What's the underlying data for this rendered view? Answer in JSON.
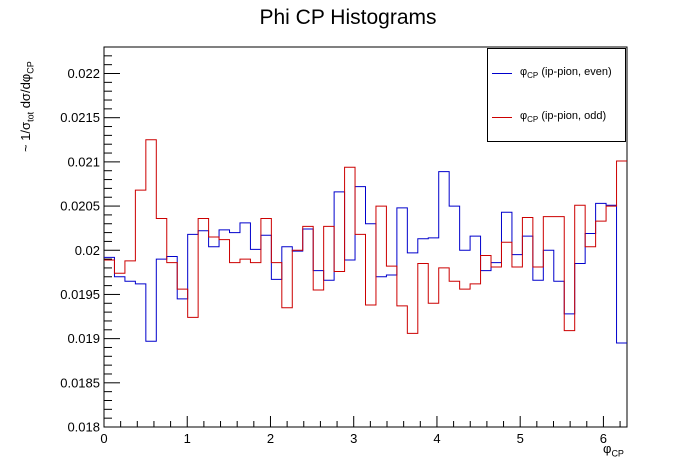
{
  "chart_data": {
    "type": "histogram",
    "title": "Phi CP Histograms",
    "xlabel_symbol": "φ",
    "xlabel_sub": "CP",
    "ylabel_parts": [
      "~ 1/σ",
      "tot",
      " dσ/dφ",
      "CP"
    ],
    "xlim": [
      0,
      6.2832
    ],
    "ylim": [
      0.018,
      0.0223
    ],
    "xticks": [
      0,
      1,
      2,
      3,
      4,
      5,
      6
    ],
    "yticks": [
      0.018,
      0.0185,
      0.019,
      0.0195,
      0.02,
      0.0205,
      0.021,
      0.0215,
      0.022
    ],
    "ytick_labels": [
      "0.018",
      "0.0185",
      "0.019",
      "0.0195",
      "0.02",
      "0.0205",
      "0.021",
      "0.0215",
      "0.022"
    ],
    "nbins": 50,
    "series": [
      {
        "name": "φCP (ip-pion, even)",
        "label_main": "φ",
        "label_sub": "CP",
        "label_rest": " (ip-pion, even)",
        "color": "#0000cc",
        "values": [
          0.01992,
          0.0197,
          0.01965,
          0.01962,
          0.01897,
          0.0199,
          0.01993,
          0.01945,
          0.02018,
          0.02022,
          0.02004,
          0.02023,
          0.0202,
          0.02031,
          0.02001,
          0.02017,
          0.01967,
          0.02004,
          0.01999,
          0.02024,
          0.01977,
          0.01966,
          0.02066,
          0.01989,
          0.02072,
          0.0203,
          0.0197,
          0.01972,
          0.02048,
          0.01997,
          0.02013,
          0.02014,
          0.02089,
          0.0205,
          0.02,
          0.02016,
          0.01977,
          0.01986,
          0.02043,
          0.01995,
          0.02016,
          0.01966,
          0.02,
          0.01965,
          0.01928,
          0.01985,
          0.02019,
          0.02053,
          0.02051,
          0.01895
        ]
      },
      {
        "name": "φCP (ip-pion, odd)",
        "label_main": "φ",
        "label_sub": "CP",
        "label_rest": " (ip-pion, odd)",
        "color": "#cc0000",
        "values": [
          0.01989,
          0.01974,
          0.01988,
          0.02068,
          0.02125,
          0.02036,
          0.01986,
          0.01956,
          0.01924,
          0.02036,
          0.02015,
          0.02012,
          0.01986,
          0.0199,
          0.01986,
          0.02036,
          0.01986,
          0.01935,
          0.02,
          0.02027,
          0.01955,
          0.02027,
          0.01976,
          0.02094,
          0.02018,
          0.01938,
          0.0205,
          0.01982,
          0.01937,
          0.01906,
          0.01985,
          0.0194,
          0.0198,
          0.01965,
          0.01956,
          0.01962,
          0.01994,
          0.01981,
          0.02009,
          0.01981,
          0.02037,
          0.01981,
          0.02038,
          0.02038,
          0.01909,
          0.02051,
          0.02004,
          0.02033,
          0.0205,
          0.02101
        ]
      }
    ]
  }
}
